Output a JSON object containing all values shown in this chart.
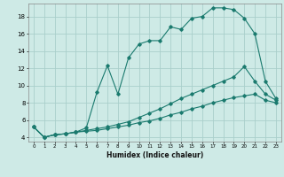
{
  "xlabel": "Humidex (Indice chaleur)",
  "background_color": "#ceeae6",
  "grid_color": "#aacfcb",
  "line_color": "#1a7a6e",
  "xlim": [
    -0.5,
    23.5
  ],
  "ylim": [
    3.5,
    19.5
  ],
  "xticks": [
    0,
    1,
    2,
    3,
    4,
    5,
    6,
    7,
    8,
    9,
    10,
    11,
    12,
    13,
    14,
    15,
    16,
    17,
    18,
    19,
    20,
    21,
    22,
    23
  ],
  "yticks": [
    4,
    6,
    8,
    10,
    12,
    14,
    16,
    18
  ],
  "curve1_x": [
    0,
    1,
    2,
    3,
    4,
    5,
    6,
    7,
    8,
    9,
    10,
    11,
    12,
    13,
    14,
    15,
    16,
    17,
    18,
    19,
    20,
    21,
    22,
    23
  ],
  "curve1_y": [
    5.2,
    4.0,
    4.3,
    4.4,
    4.6,
    5.1,
    9.2,
    12.3,
    9.0,
    13.2,
    14.8,
    15.2,
    15.2,
    16.8,
    16.5,
    17.8,
    18.0,
    19.0,
    19.0,
    18.8,
    17.8,
    16.0,
    10.5,
    8.5
  ],
  "curve2_x": [
    0,
    1,
    2,
    3,
    4,
    5,
    6,
    7,
    8,
    9,
    10,
    11,
    12,
    13,
    14,
    15,
    16,
    17,
    18,
    19,
    20,
    21,
    22,
    23
  ],
  "curve2_y": [
    5.2,
    4.0,
    4.3,
    4.4,
    4.6,
    4.8,
    5.0,
    5.2,
    5.5,
    5.8,
    6.3,
    6.8,
    7.3,
    7.9,
    8.5,
    9.0,
    9.5,
    10.0,
    10.5,
    11.0,
    12.2,
    10.5,
    9.0,
    8.3
  ],
  "curve3_x": [
    0,
    1,
    2,
    3,
    4,
    5,
    6,
    7,
    8,
    9,
    10,
    11,
    12,
    13,
    14,
    15,
    16,
    17,
    18,
    19,
    20,
    21,
    22,
    23
  ],
  "curve3_y": [
    5.2,
    4.0,
    4.3,
    4.4,
    4.6,
    4.7,
    4.8,
    5.0,
    5.2,
    5.4,
    5.7,
    5.9,
    6.2,
    6.6,
    6.9,
    7.3,
    7.6,
    8.0,
    8.3,
    8.6,
    8.8,
    9.0,
    8.3,
    8.0
  ]
}
